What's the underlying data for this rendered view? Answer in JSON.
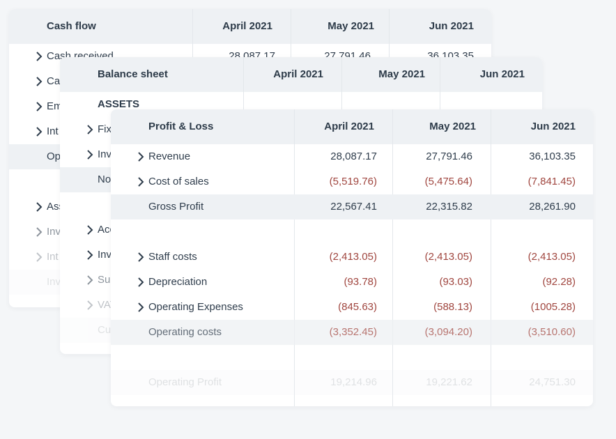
{
  "cash_flow": {
    "header": {
      "title": "Cash flow",
      "col1": "April 2021",
      "col2": "May 2021",
      "col3": "Jun 2021"
    },
    "rows": [
      {
        "label": "Cash received",
        "v1": "28,087.17",
        "v2": "27,791.46",
        "v3": "36,103.35"
      },
      {
        "label": "Ca"
      },
      {
        "label": "Em"
      },
      {
        "label": "Int"
      },
      {
        "label": "Op"
      },
      {
        "label": "Ass"
      },
      {
        "label": "Inv"
      },
      {
        "label": "Int"
      },
      {
        "label": "Inv"
      }
    ]
  },
  "balance_sheet": {
    "header": {
      "title": "Balance sheet",
      "col1": "April 2021",
      "col2": "May 2021",
      "col3": "Jun 2021"
    },
    "rows": [
      {
        "label": "ASSETS"
      },
      {
        "label": "Fix"
      },
      {
        "label": "Inv"
      },
      {
        "label": "No"
      },
      {
        "label": "Acc"
      },
      {
        "label": "Inv"
      },
      {
        "label": "Sur"
      },
      {
        "label": "VAT"
      },
      {
        "label": "Cu"
      }
    ]
  },
  "profit_loss": {
    "header": {
      "title": "Profit & Loss",
      "col1": "April 2021",
      "col2": "May 2021",
      "col3": "Jun 2021"
    },
    "rows": [
      {
        "label": "Revenue",
        "v1": "28,087.17",
        "v2": "27,791.46",
        "v3": "36,103.35"
      },
      {
        "label": "Cost of sales",
        "v1": "(5,519.76)",
        "v2": "(5,475.64)",
        "v3": "(7,841.45)"
      },
      {
        "label": "Gross Profit",
        "v1": "22,567.41",
        "v2": "22,315.82",
        "v3": "28,261.90"
      },
      {
        "label": "Staff costs",
        "v1": "(2,413.05)",
        "v2": "(2,413.05)",
        "v3": "(2,413.05)"
      },
      {
        "label": "Depreciation",
        "v1": "(93.78)",
        "v2": "(93.03)",
        "v3": "(92.28)"
      },
      {
        "label": "Operating Expenses",
        "v1": "(845.63)",
        "v2": "(588.13)",
        "v3": "(1005.28)"
      },
      {
        "label": "Operating costs",
        "v1": "(3,352.45)",
        "v2": "(3,094.20)",
        "v3": "(3,510.60)"
      },
      {
        "label": "Operating Profit",
        "v1": "19,214.96",
        "v2": "19,221.62",
        "v3": "24,751.30"
      }
    ]
  },
  "icons": {
    "expand": "chevron-right-icon"
  },
  "colors": {
    "negative": "#a0463f",
    "header_bg": "#eef1f4",
    "page_bg": "#f4f6f8"
  }
}
